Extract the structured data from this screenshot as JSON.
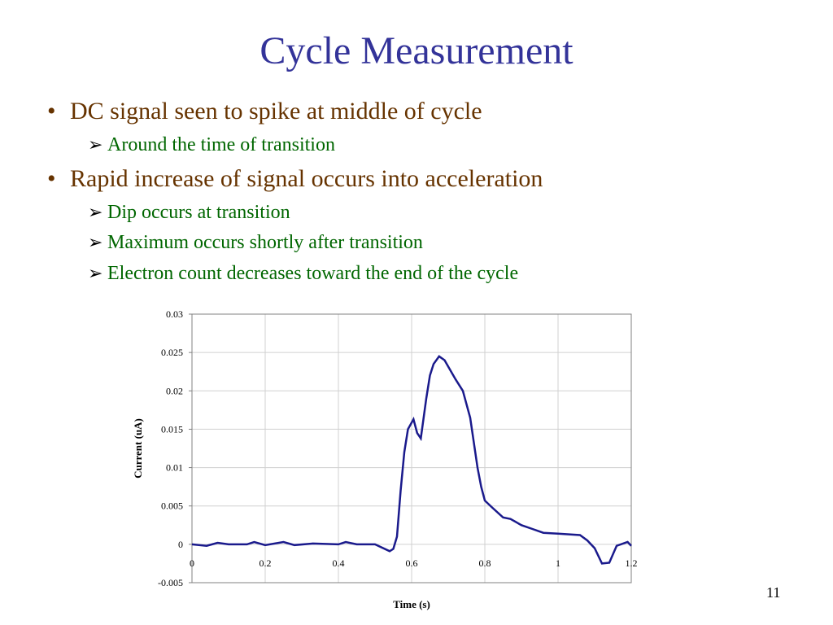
{
  "slide": {
    "title": "Cycle Measurement",
    "number": "11",
    "bullets": [
      {
        "text": "DC signal seen to spike at middle of cycle",
        "subs": [
          "Around the time of transition"
        ]
      },
      {
        "text": "Rapid increase of signal occurs into acceleration",
        "subs": [
          "Dip occurs at transition",
          "Maximum occurs shortly after transition",
          "Electron count decreases toward the end of the cycle"
        ]
      }
    ],
    "bullet_glyph": "•",
    "sub_glyph": "➢"
  },
  "colors": {
    "title": "#333399",
    "bullet": "#663300",
    "sub": "#006600",
    "line": "#1a1a8c"
  },
  "chart_data": {
    "type": "line",
    "title": "",
    "xlabel": "Time (s)",
    "ylabel": "Current (uA)",
    "xlim": [
      0,
      1.2
    ],
    "ylim": [
      -0.005,
      0.03
    ],
    "grid": true,
    "xticks": [
      "0",
      "0.2",
      "0.4",
      "0.6",
      "0.8",
      "1",
      "1.2"
    ],
    "yticks": [
      "-0.005",
      "0",
      "0.005",
      "0.01",
      "0.015",
      "0.02",
      "0.025",
      "0.03"
    ],
    "series": [
      {
        "name": "Current",
        "x": [
          0,
          0.04,
          0.07,
          0.1,
          0.15,
          0.17,
          0.2,
          0.25,
          0.28,
          0.33,
          0.4,
          0.42,
          0.45,
          0.5,
          0.54,
          0.55,
          0.56,
          0.57,
          0.58,
          0.59,
          0.605,
          0.615,
          0.625,
          0.64,
          0.65,
          0.66,
          0.675,
          0.69,
          0.72,
          0.74,
          0.76,
          0.78,
          0.79,
          0.8,
          0.82,
          0.85,
          0.87,
          0.9,
          0.93,
          0.96,
          1.0,
          1.06,
          1.08,
          1.1,
          1.12,
          1.14,
          1.16,
          1.19,
          1.2
        ],
        "y": [
          0,
          -0.0002,
          0.0002,
          0,
          0,
          0.0003,
          -0.0001,
          0.0003,
          -0.0001,
          0.0001,
          0,
          0.0003,
          0,
          0,
          -0.0009,
          -0.0006,
          0.001,
          0.007,
          0.012,
          0.015,
          0.0163,
          0.0145,
          0.0138,
          0.019,
          0.022,
          0.0235,
          0.0245,
          0.024,
          0.0215,
          0.02,
          0.0165,
          0.01,
          0.0075,
          0.0057,
          0.0048,
          0.0035,
          0.0033,
          0.0025,
          0.002,
          0.0015,
          0.0014,
          0.0012,
          0.0005,
          -0.0005,
          -0.0025,
          -0.0024,
          -0.0002,
          0.0003,
          -0.0002
        ]
      }
    ]
  }
}
